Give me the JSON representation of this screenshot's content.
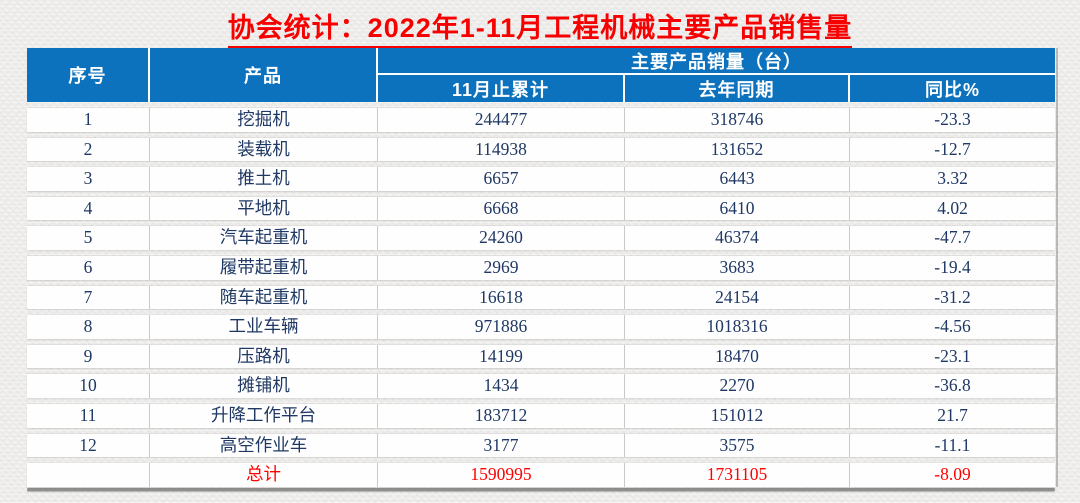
{
  "title": "协会统计：2022年1-11月工程机械主要产品销售量",
  "colors": {
    "header_bg": "#0c72be",
    "data_text": "#1f3864",
    "accent_red": "#ff0000",
    "title_red": "#f70000"
  },
  "table": {
    "headers": {
      "no": "序号",
      "product": "产品",
      "group": "主要产品销量（台）",
      "cumulative": "11月止累计",
      "last_year": "去年同期",
      "yoy": "同比%"
    },
    "rows": [
      {
        "no": "1",
        "product": "挖掘机",
        "cumulative": "244477",
        "last_year": "318746",
        "yoy": "-23.3"
      },
      {
        "no": "2",
        "product": "装载机",
        "cumulative": "114938",
        "last_year": "131652",
        "yoy": "-12.7"
      },
      {
        "no": "3",
        "product": "推土机",
        "cumulative": "6657",
        "last_year": "6443",
        "yoy": "3.32"
      },
      {
        "no": "4",
        "product": "平地机",
        "cumulative": "6668",
        "last_year": "6410",
        "yoy": "4.02"
      },
      {
        "no": "5",
        "product": "汽车起重机",
        "cumulative": "24260",
        "last_year": "46374",
        "yoy": "-47.7"
      },
      {
        "no": "6",
        "product": "履带起重机",
        "cumulative": "2969",
        "last_year": "3683",
        "yoy": "-19.4"
      },
      {
        "no": "7",
        "product": "随车起重机",
        "cumulative": "16618",
        "last_year": "24154",
        "yoy": "-31.2"
      },
      {
        "no": "8",
        "product": "工业车辆",
        "cumulative": "971886",
        "last_year": "1018316",
        "yoy": "-4.56"
      },
      {
        "no": "9",
        "product": "压路机",
        "cumulative": "14199",
        "last_year": "18470",
        "yoy": "-23.1"
      },
      {
        "no": "10",
        "product": "摊铺机",
        "cumulative": "1434",
        "last_year": "2270",
        "yoy": "-36.8"
      },
      {
        "no": "11",
        "product": "升降工作平台",
        "cumulative": "183712",
        "last_year": "151012",
        "yoy": "21.7"
      },
      {
        "no": "12",
        "product": "高空作业车",
        "cumulative": "3177",
        "last_year": "3575",
        "yoy": "-11.1"
      }
    ],
    "total": {
      "no": "",
      "label": "总计",
      "cumulative": "1590995",
      "last_year": "1731105",
      "yoy": "-8.09"
    }
  },
  "chart_data": {
    "type": "table",
    "title": "协会统计：2022年1-11月工程机械主要产品销售量",
    "group_header": "主要产品销量（台）",
    "columns": [
      "序号",
      "产品",
      "11月止累计",
      "去年同期",
      "同比%"
    ],
    "rows": [
      [
        1,
        "挖掘机",
        244477,
        318746,
        -23.3
      ],
      [
        2,
        "装载机",
        114938,
        131652,
        -12.7
      ],
      [
        3,
        "推土机",
        6657,
        6443,
        3.32
      ],
      [
        4,
        "平地机",
        6668,
        6410,
        4.02
      ],
      [
        5,
        "汽车起重机",
        24260,
        46374,
        -47.7
      ],
      [
        6,
        "履带起重机",
        2969,
        3683,
        -19.4
      ],
      [
        7,
        "随车起重机",
        16618,
        24154,
        -31.2
      ],
      [
        8,
        "工业车辆",
        971886,
        1018316,
        -4.56
      ],
      [
        9,
        "压路机",
        14199,
        18470,
        -23.1
      ],
      [
        10,
        "摊铺机",
        1434,
        2270,
        -36.8
      ],
      [
        11,
        "升降工作平台",
        183712,
        151012,
        21.7
      ],
      [
        12,
        "高空作业车",
        3177,
        3575,
        -11.1
      ]
    ],
    "total_row": [
      "",
      "总计",
      1590995,
      1731105,
      -8.09
    ]
  }
}
